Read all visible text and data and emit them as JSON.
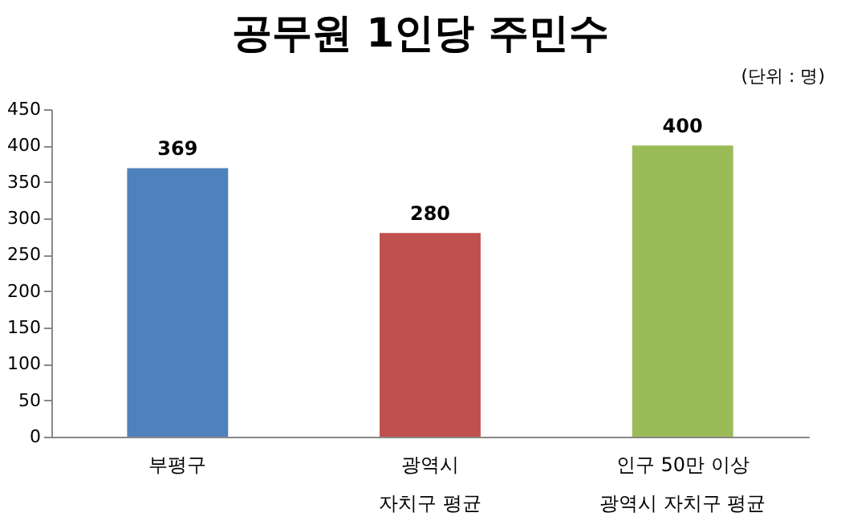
{
  "chart_data": {
    "type": "bar",
    "title": "공무원 1인당 주민수",
    "annotations": [
      "(단위 : 명)"
    ],
    "categories": [
      "부평구",
      "광역시\n자치구 평균",
      "인구 50만 이상\n광역시 자치구 평균"
    ],
    "values": [
      369,
      280,
      400
    ],
    "colors": [
      "#4f81bd",
      "#c0504d",
      "#9bbb59"
    ],
    "ylim": [
      0,
      450
    ],
    "yticks": [
      0,
      50,
      100,
      150,
      200,
      250,
      300,
      350,
      400,
      450
    ],
    "data_labels": true
  }
}
